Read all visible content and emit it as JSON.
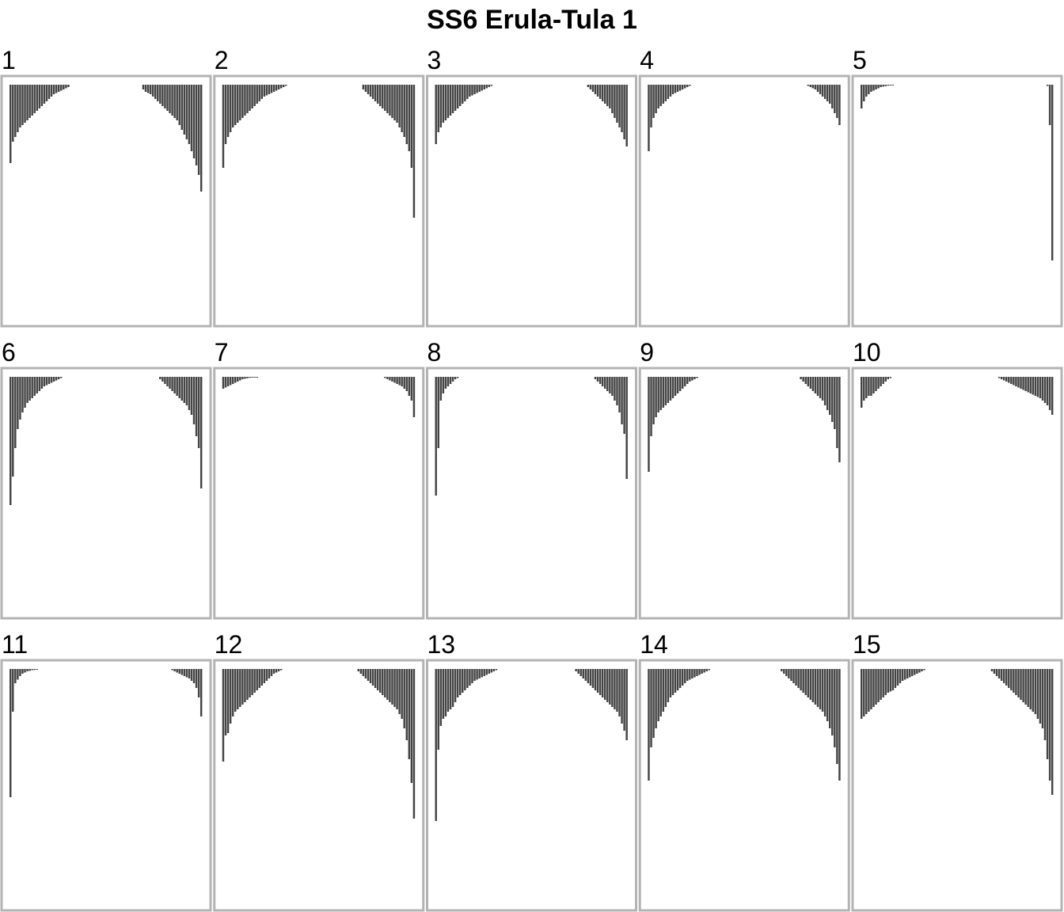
{
  "chart_data": {
    "type": "bar",
    "title": "SS6 Erula-Tula 1",
    "xlabel": "",
    "ylabel": "",
    "ylim": [
      0,
      1
    ],
    "grid": false,
    "legend": false,
    "bar_color": "#444444",
    "panel_border_color": "#b3b3b3",
    "panels": [
      {
        "label": "1",
        "left": [
          0.33,
          0.24,
          0.22,
          0.2,
          0.18,
          0.17,
          0.16,
          0.15,
          0.14,
          0.13,
          0.12,
          0.11,
          0.1,
          0.09,
          0.08,
          0.07,
          0.06,
          0.05,
          0.04,
          0.035,
          0.03,
          0.025,
          0.02,
          0.015,
          0.01
        ],
        "right": [
          0.02,
          0.03,
          0.035,
          0.04,
          0.05,
          0.06,
          0.07,
          0.08,
          0.09,
          0.1,
          0.11,
          0.12,
          0.13,
          0.14,
          0.15,
          0.17,
          0.19,
          0.21,
          0.23,
          0.25,
          0.28,
          0.31,
          0.34,
          0.38,
          0.45
        ]
      },
      {
        "label": "2",
        "left": [
          0.35,
          0.25,
          0.22,
          0.2,
          0.18,
          0.17,
          0.16,
          0.15,
          0.14,
          0.13,
          0.12,
          0.11,
          0.1,
          0.09,
          0.08,
          0.07,
          0.06,
          0.05,
          0.045,
          0.04,
          0.035,
          0.03,
          0.025,
          0.02,
          0.015,
          0.01,
          0.005
        ],
        "right": [
          0.02,
          0.03,
          0.04,
          0.05,
          0.06,
          0.07,
          0.08,
          0.09,
          0.1,
          0.11,
          0.12,
          0.13,
          0.14,
          0.15,
          0.16,
          0.18,
          0.2,
          0.22,
          0.25,
          0.28,
          0.35,
          0.56
        ]
      },
      {
        "label": "3",
        "left": [
          0.25,
          0.2,
          0.18,
          0.16,
          0.15,
          0.14,
          0.13,
          0.12,
          0.11,
          0.1,
          0.09,
          0.08,
          0.07,
          0.06,
          0.05,
          0.045,
          0.04,
          0.035,
          0.03,
          0.025,
          0.02,
          0.015,
          0.01,
          0.005
        ],
        "right": [
          0.01,
          0.02,
          0.03,
          0.04,
          0.05,
          0.06,
          0.07,
          0.08,
          0.09,
          0.1,
          0.12,
          0.14,
          0.16,
          0.18,
          0.2,
          0.23,
          0.26
        ]
      },
      {
        "label": "4",
        "left": [
          0.28,
          0.18,
          0.14,
          0.12,
          0.1,
          0.09,
          0.08,
          0.07,
          0.06,
          0.05,
          0.04,
          0.035,
          0.03,
          0.025,
          0.02,
          0.015,
          0.01,
          0.005
        ],
        "right": [
          0.005,
          0.01,
          0.015,
          0.02,
          0.03,
          0.04,
          0.05,
          0.06,
          0.07,
          0.08,
          0.1,
          0.12,
          0.14,
          0.17
        ]
      },
      {
        "label": "5",
        "left": [
          0.1,
          0.07,
          0.05,
          0.04,
          0.03,
          0.025,
          0.02,
          0.015,
          0.01,
          0.008,
          0.006,
          0.004,
          0.003,
          0.002
        ],
        "right": [
          0.005,
          0.17,
          0.74
        ]
      },
      {
        "label": "6",
        "left": [
          0.54,
          0.42,
          0.3,
          0.22,
          0.18,
          0.15,
          0.13,
          0.11,
          0.1,
          0.09,
          0.08,
          0.07,
          0.06,
          0.05,
          0.04,
          0.035,
          0.03,
          0.025,
          0.02,
          0.015,
          0.01,
          0.005
        ],
        "right": [
          0.01,
          0.02,
          0.03,
          0.04,
          0.05,
          0.06,
          0.07,
          0.08,
          0.09,
          0.1,
          0.11,
          0.12,
          0.14,
          0.16,
          0.2,
          0.25,
          0.3,
          0.47
        ]
      },
      {
        "label": "7",
        "left": [
          0.05,
          0.045,
          0.04,
          0.035,
          0.03,
          0.025,
          0.02,
          0.015,
          0.01,
          0.008,
          0.006,
          0.004,
          0.003,
          0.002,
          0.001
        ],
        "right": [
          0.005,
          0.01,
          0.015,
          0.02,
          0.025,
          0.03,
          0.035,
          0.04,
          0.05,
          0.06,
          0.08,
          0.1,
          0.17
        ]
      },
      {
        "label": "8",
        "left": [
          0.5,
          0.3,
          0.1,
          0.07,
          0.05,
          0.04,
          0.03,
          0.02,
          0.01,
          0.005
        ],
        "right": [
          0.01,
          0.02,
          0.03,
          0.04,
          0.05,
          0.06,
          0.07,
          0.08,
          0.1,
          0.12,
          0.15,
          0.2,
          0.24,
          0.43
        ]
      },
      {
        "label": "9",
        "left": [
          0.4,
          0.25,
          0.2,
          0.17,
          0.15,
          0.14,
          0.13,
          0.12,
          0.11,
          0.1,
          0.09,
          0.08,
          0.07,
          0.06,
          0.05,
          0.04,
          0.03,
          0.02,
          0.015,
          0.01,
          0.005
        ],
        "right": [
          0.01,
          0.02,
          0.03,
          0.04,
          0.05,
          0.06,
          0.07,
          0.08,
          0.09,
          0.1,
          0.12,
          0.14,
          0.16,
          0.19,
          0.22,
          0.3,
          0.36
        ]
      },
      {
        "label": "10",
        "left": [
          0.13,
          0.1,
          0.09,
          0.08,
          0.08,
          0.07,
          0.06,
          0.05,
          0.04,
          0.03,
          0.02,
          0.01,
          0.005
        ],
        "right": [
          0.005,
          0.01,
          0.015,
          0.02,
          0.025,
          0.03,
          0.035,
          0.04,
          0.045,
          0.05,
          0.055,
          0.06,
          0.065,
          0.07,
          0.075,
          0.08,
          0.085,
          0.09,
          0.1,
          0.11,
          0.12,
          0.14,
          0.16
        ]
      },
      {
        "label": "11",
        "left": [
          0.54,
          0.18,
          0.06,
          0.045,
          0.03,
          0.02,
          0.015,
          0.01,
          0.008,
          0.005,
          0.004,
          0.003
        ],
        "right": [
          0.005,
          0.01,
          0.015,
          0.02,
          0.025,
          0.03,
          0.035,
          0.04,
          0.05,
          0.06,
          0.08,
          0.12,
          0.2
        ]
      },
      {
        "label": "12",
        "left": [
          0.39,
          0.28,
          0.27,
          0.23,
          0.2,
          0.18,
          0.17,
          0.16,
          0.15,
          0.14,
          0.13,
          0.12,
          0.11,
          0.1,
          0.09,
          0.08,
          0.07,
          0.06,
          0.05,
          0.04,
          0.03,
          0.02,
          0.015,
          0.01,
          0.005
        ],
        "right": [
          0.01,
          0.02,
          0.03,
          0.04,
          0.05,
          0.06,
          0.07,
          0.08,
          0.09,
          0.1,
          0.11,
          0.12,
          0.13,
          0.14,
          0.15,
          0.16,
          0.17,
          0.19,
          0.21,
          0.25,
          0.3,
          0.38,
          0.48,
          0.63
        ]
      },
      {
        "label": "13",
        "left": [
          0.64,
          0.34,
          0.24,
          0.21,
          0.2,
          0.18,
          0.17,
          0.16,
          0.14,
          0.12,
          0.11,
          0.1,
          0.09,
          0.08,
          0.07,
          0.06,
          0.05,
          0.045,
          0.04,
          0.035,
          0.03,
          0.025,
          0.02,
          0.015,
          0.01,
          0.005
        ],
        "right": [
          0.01,
          0.02,
          0.03,
          0.04,
          0.05,
          0.06,
          0.07,
          0.08,
          0.09,
          0.1,
          0.11,
          0.12,
          0.13,
          0.14,
          0.15,
          0.16,
          0.17,
          0.18,
          0.2,
          0.23,
          0.26,
          0.3
        ]
      },
      {
        "label": "14",
        "left": [
          0.47,
          0.33,
          0.29,
          0.25,
          0.22,
          0.2,
          0.18,
          0.16,
          0.14,
          0.12,
          0.11,
          0.1,
          0.09,
          0.08,
          0.07,
          0.06,
          0.05,
          0.045,
          0.04,
          0.035,
          0.03,
          0.025,
          0.02,
          0.015,
          0.01,
          0.005
        ],
        "right": [
          0.01,
          0.02,
          0.03,
          0.04,
          0.05,
          0.06,
          0.07,
          0.08,
          0.09,
          0.1,
          0.11,
          0.12,
          0.13,
          0.14,
          0.15,
          0.16,
          0.17,
          0.18,
          0.2,
          0.22,
          0.25,
          0.28,
          0.33,
          0.4,
          0.47
        ]
      },
      {
        "label": "15",
        "left": [
          0.21,
          0.2,
          0.19,
          0.18,
          0.17,
          0.16,
          0.15,
          0.14,
          0.13,
          0.12,
          0.11,
          0.1,
          0.095,
          0.09,
          0.08,
          0.07,
          0.06,
          0.05,
          0.045,
          0.04,
          0.035,
          0.03,
          0.025,
          0.02,
          0.015,
          0.01,
          0.005
        ],
        "right": [
          0.01,
          0.02,
          0.03,
          0.04,
          0.05,
          0.06,
          0.07,
          0.08,
          0.09,
          0.1,
          0.11,
          0.12,
          0.13,
          0.14,
          0.15,
          0.16,
          0.17,
          0.18,
          0.19,
          0.21,
          0.23,
          0.25,
          0.3,
          0.38,
          0.47,
          0.53
        ]
      }
    ]
  }
}
